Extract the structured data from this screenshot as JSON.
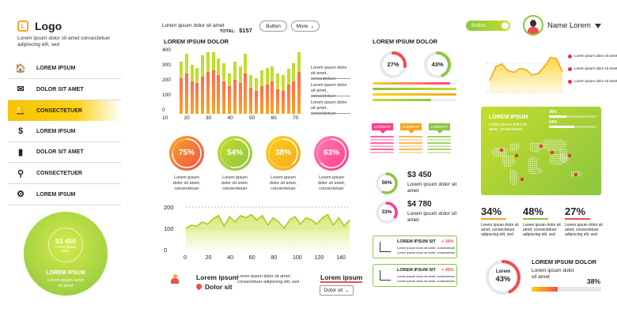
{
  "logo": {
    "text": "Logo",
    "letter": "L",
    "desc": "Lorem ipsum dolor sit amet consectetuer adipiscing elit, sed"
  },
  "nav": [
    {
      "label": "LOREM IPSUM",
      "icon": "home-icon",
      "glyph": "🏠"
    },
    {
      "label": "DOLOR SIT AMET",
      "icon": "mail-icon",
      "glyph": "✉"
    },
    {
      "label": "CONSECTETUER",
      "icon": "bell-icon",
      "glyph": "🔔",
      "active": true
    },
    {
      "label": "LOREM IPSUM",
      "icon": "dollar-icon",
      "glyph": "$"
    },
    {
      "label": "DOLOR SIT AMET",
      "icon": "bar-chart-icon",
      "glyph": "▮"
    },
    {
      "label": "CONSECTETUER",
      "icon": "search-icon",
      "glyph": "⚲"
    },
    {
      "label": "LOREM IPSUM",
      "icon": "gear-icon",
      "glyph": "⚙"
    }
  ],
  "promo": {
    "amount": "$3 450",
    "seal_text": "Lorem ipsum dolor",
    "title": "LOREM IPSUM",
    "desc": "Lorem ipsum dolor sit amet"
  },
  "topbar": {
    "text": "Lorem ipsum dolor sit amet",
    "total_label": "TOTAL:",
    "total_value": "$157",
    "button_label": "Button",
    "more_label": "More",
    "toggle_label": "Button",
    "user_name": "Name Lorem"
  },
  "colors": {
    "green": "#8cc63f",
    "lime": "#c5dd2b",
    "orange": "#f5a623",
    "red": "#f04e4e",
    "pink": "#ff3d8b",
    "yellow": "#fcd116"
  },
  "chart_data": [
    {
      "type": "bar",
      "title": "LOREM IPSUM DOLOR",
      "x_ticks": [
        "10",
        "20",
        "30",
        "40",
        "50",
        "60",
        "70"
      ],
      "y_ticks": [
        "0",
        "100",
        "200",
        "300",
        "400"
      ],
      "ylim": [
        0,
        400
      ],
      "series": [
        {
          "values": [
            340,
            390,
            320,
            300,
            380,
            400,
            410,
            360,
            330,
            260,
            340,
            310,
            390,
            250,
            230,
            280,
            300,
            310,
            260,
            250,
            290,
            330,
            400
          ]
        },
        {
          "values": [
            230,
            260,
            210,
            200,
            240,
            270,
            280,
            250,
            210,
            180,
            220,
            200,
            260,
            170,
            150,
            180,
            190,
            210,
            160,
            150,
            190,
            210,
            270
          ]
        }
      ]
    },
    {
      "type": "area",
      "x_ticks": [
        "0",
        "20",
        "40",
        "60",
        "80",
        "100",
        "120",
        "140"
      ],
      "y_ticks": [
        "0",
        "100",
        "200"
      ],
      "ylim": [
        0,
        200
      ],
      "x": [
        0,
        5,
        10,
        15,
        20,
        25,
        30,
        35,
        40,
        45,
        50,
        55,
        60,
        65,
        70,
        75,
        80,
        85,
        90,
        95,
        100,
        105,
        110,
        115,
        120,
        125,
        130,
        135,
        140,
        145,
        150
      ],
      "values": [
        100,
        115,
        110,
        130,
        120,
        145,
        160,
        110,
        155,
        130,
        160,
        150,
        165,
        140,
        160,
        115,
        150,
        130,
        100,
        140,
        155,
        120,
        150,
        140,
        120,
        150,
        165,
        115,
        150,
        110,
        140
      ]
    },
    {
      "type": "area",
      "x": [
        0,
        1,
        2,
        3,
        4,
        5,
        6,
        7,
        8,
        9,
        10,
        11,
        12
      ],
      "values": [
        20,
        45,
        50,
        38,
        35,
        42,
        40,
        30,
        33,
        45,
        62,
        60,
        36
      ]
    }
  ],
  "bar_legend": [
    "Lorem ipsum dolor sit amet, consectetuer",
    "Lorem ipsum dolor sit amet, consectetuer",
    "Lorem ipsum dolor sit amet, consectetuer"
  ],
  "bubbles": [
    {
      "pct": "75%",
      "value": 75,
      "desc": "Lorem ipsum dolor sit amet, consectetuer",
      "from": "#f5a623",
      "to": "#f04e4e"
    },
    {
      "pct": "54%",
      "value": 54,
      "desc": "Lorem ipsum dolor sit amet, consectetuer",
      "from": "#c5dd2b",
      "to": "#8cc63f"
    },
    {
      "pct": "38%",
      "value": 38,
      "desc": "Lorem ipsum dolor sit amet, consectetuer",
      "from": "#fcd116",
      "to": "#f5a623"
    },
    {
      "pct": "63%",
      "value": 63,
      "desc": "Lorem ipsum dolor sit amet, consectetuer",
      "from": "#ff7eb0",
      "to": "#ff3d8b"
    }
  ],
  "contact": {
    "name": "Lorem ipsum",
    "place": "Dolor sit",
    "desc": "Lorem ipsum dolor sit amet, consectetuer adipiscing elit, sed",
    "link": "Lorem ipsum",
    "select": "Dolor sit"
  },
  "mid": {
    "title": "LOREM IPSUM DOLOR",
    "rings": [
      {
        "pct": "27%",
        "value": 27,
        "color": "#f04e4e"
      },
      {
        "pct": "43%",
        "value": 43,
        "color": "#8cc63f"
      }
    ],
    "ribbons": [
      {
        "label": "LOREM IP",
        "color": "#ff3d8b"
      },
      {
        "label": "LOREM IP",
        "color": "#f5a623"
      },
      {
        "label": "LOREM IP",
        "color": "#8cc63f"
      }
    ],
    "stats": [
      {
        "pct": "56%",
        "value": 56,
        "color": "#8cc63f",
        "amount": "$3 450",
        "desc": "Lorem ipsum dolor sit amet"
      },
      {
        "pct": "33%",
        "value": 33,
        "color": "#ff3d8b",
        "amount": "$4 780",
        "desc": "Lorem ipsum dolor sit amet"
      }
    ],
    "cards": [
      {
        "title": "LOREM IPSUM SIT",
        "change": "+ 34%",
        "line1": "Lorem ipsum dolor sit amet, consectetuer",
        "line2": "Lorem ipsum dolor sit amet, consectetuer",
        "icon": "bar-chart-icon"
      },
      {
        "title": "LOREM IPSUM SIT",
        "change": "+ 45%",
        "line1": "Lorem ipsum dolor sit amet, consectetuer",
        "line2": "Lorem ipsum dolor sit amet, consectetuer",
        "icon": "presentation-icon"
      }
    ]
  },
  "right": {
    "legend": [
      "Lorem ipsum dolor sit amet",
      "Lorem ipsum dolor sit amet",
      "Lorem ipsum dolor sit amet"
    ],
    "map": {
      "title": "LOREM IPSUM",
      "desc": "Lorem ipsum dolor sit amet, consectetuer",
      "bars": [
        {
          "pct": "36%",
          "value": 36
        },
        {
          "pct": "54%",
          "value": 54
        }
      ]
    },
    "stats": [
      {
        "pct": "34%",
        "desc": "Lorem ipsum dolor sit amet, consectetuer adipiscing elit, sed"
      },
      {
        "pct": "48%",
        "desc": "Lorem ipsum dolor sit amet, consectetuer adipiscing elit, sed"
      },
      {
        "pct": "27%",
        "desc": "Lorem ipsum dolor sit amet, consectetuer adipiscing elit, sed"
      }
    ],
    "bottom": {
      "title": "LOREM IPSUM DOLOR",
      "desc": "Lorem ipsum dolor sit amet",
      "ring_title": "Lorem",
      "ring_pct": "43%",
      "ring_value": 43,
      "bar_pct": "38%",
      "bar_value": 38
    }
  }
}
